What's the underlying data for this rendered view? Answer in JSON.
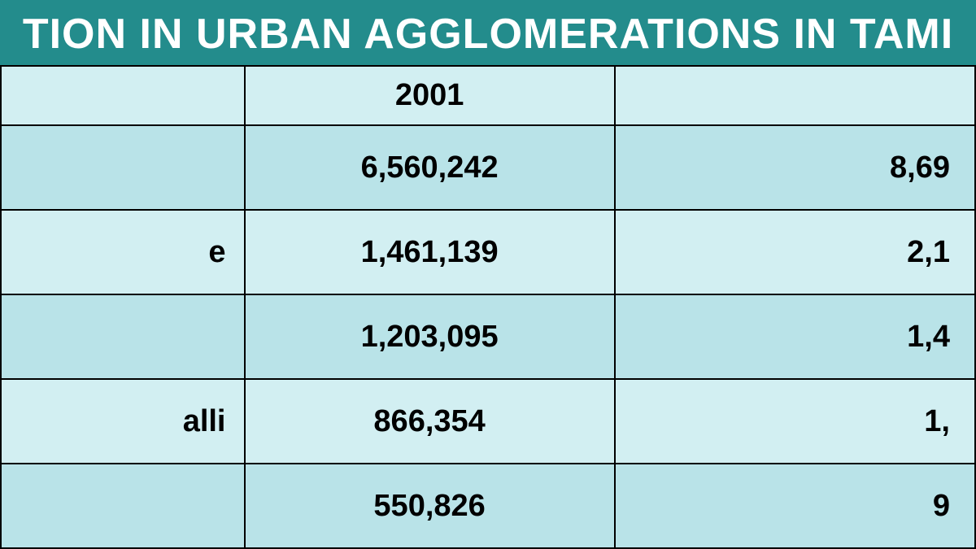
{
  "title": "TION IN URBAN AGGLOMERATIONS IN TAMI",
  "title_bg": "#238c8c",
  "title_color": "#ffffff",
  "title_fontsize": 52,
  "border_color": "#000000",
  "header_bg": "#d2eff2",
  "row_even_bg": "#b9e3e8",
  "row_odd_bg": "#d2eff2",
  "cell_text_color": "#000000",
  "header_fontsize": 38,
  "cell_fontsize": 38,
  "columns": [
    "",
    "2001",
    ""
  ],
  "rows": [
    {
      "label": "",
      "v2001": "6,560,242",
      "v2011": "8,69"
    },
    {
      "label": "e",
      "v2001": "1,461,139",
      "v2011": "2,1"
    },
    {
      "label": "",
      "v2001": "1,203,095",
      "v2011": "1,4"
    },
    {
      "label": "alli",
      "v2001": "866,354",
      "v2011": "1,"
    },
    {
      "label": "",
      "v2001": "550,826",
      "v2011": "9"
    }
  ]
}
